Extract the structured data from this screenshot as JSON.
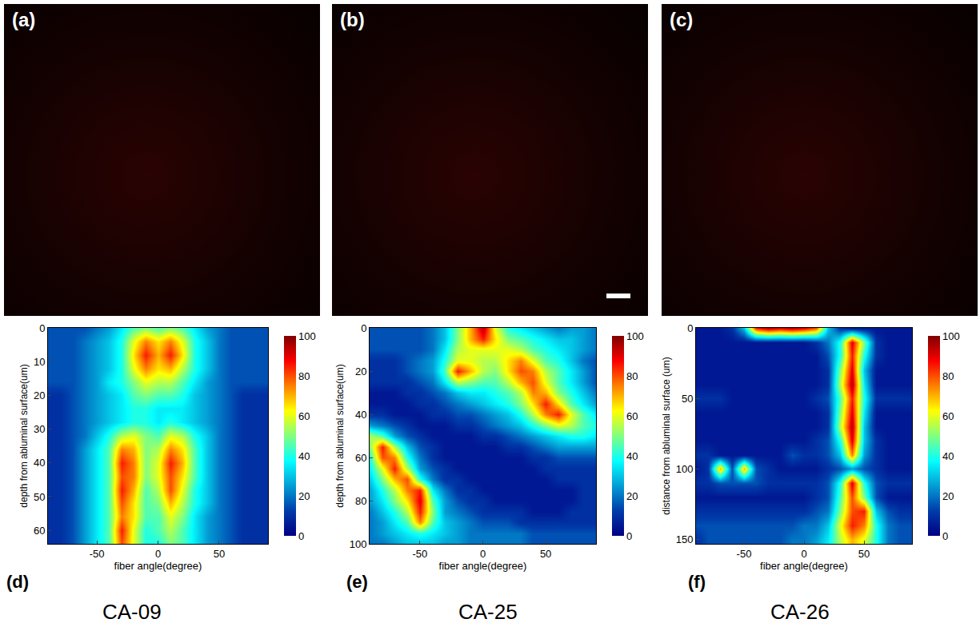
{
  "images": [
    {
      "label": "(a)"
    },
    {
      "label": "(b)"
    },
    {
      "label": "(c)"
    }
  ],
  "chart_data": [
    {
      "type": "heatmap",
      "label": "(d)",
      "caption": "CA-09",
      "x_label": "fiber angle(degree)",
      "y_label": "depth from abluminal surface(um)",
      "x": [
        -90,
        -80,
        -70,
        -60,
        -50,
        -40,
        -30,
        -20,
        -10,
        0,
        10,
        20,
        30,
        40,
        50,
        60,
        70,
        80,
        90
      ],
      "y": [
        0,
        4,
        8,
        12,
        16,
        20,
        24,
        28,
        32,
        36,
        40,
        44,
        48,
        52,
        56,
        60,
        64
      ],
      "z": [
        [
          15,
          15,
          15,
          15,
          20,
          25,
          35,
          45,
          50,
          45,
          50,
          45,
          35,
          25,
          20,
          15,
          15,
          15,
          15
        ],
        [
          15,
          15,
          15,
          20,
          25,
          30,
          40,
          60,
          75,
          65,
          75,
          60,
          40,
          30,
          20,
          15,
          15,
          15,
          15
        ],
        [
          15,
          15,
          15,
          20,
          25,
          30,
          40,
          65,
          85,
          70,
          85,
          65,
          40,
          30,
          20,
          15,
          15,
          15,
          15
        ],
        [
          15,
          15,
          15,
          20,
          25,
          30,
          40,
          60,
          75,
          65,
          70,
          55,
          40,
          30,
          20,
          15,
          15,
          15,
          15
        ],
        [
          15,
          15,
          15,
          20,
          25,
          35,
          40,
          50,
          60,
          55,
          55,
          45,
          35,
          25,
          20,
          15,
          15,
          15,
          15
        ],
        [
          10,
          10,
          15,
          20,
          25,
          30,
          35,
          45,
          50,
          45,
          45,
          40,
          30,
          25,
          20,
          15,
          10,
          10,
          10
        ],
        [
          10,
          10,
          15,
          20,
          25,
          30,
          35,
          40,
          40,
          35,
          35,
          35,
          30,
          25,
          20,
          15,
          10,
          10,
          10
        ],
        [
          10,
          10,
          15,
          20,
          25,
          30,
          35,
          40,
          40,
          35,
          40,
          35,
          30,
          25,
          20,
          15,
          10,
          10,
          10
        ],
        [
          10,
          10,
          15,
          20,
          30,
          40,
          55,
          60,
          50,
          45,
          60,
          55,
          40,
          30,
          20,
          15,
          10,
          10,
          10
        ],
        [
          10,
          10,
          15,
          25,
          35,
          45,
          75,
          70,
          50,
          55,
          75,
          65,
          45,
          30,
          20,
          15,
          10,
          10,
          10
        ],
        [
          10,
          10,
          15,
          25,
          35,
          45,
          85,
          75,
          50,
          60,
          85,
          70,
          45,
          30,
          20,
          15,
          10,
          10,
          10
        ],
        [
          10,
          10,
          15,
          25,
          35,
          45,
          80,
          75,
          50,
          60,
          80,
          65,
          45,
          30,
          20,
          15,
          10,
          10,
          10
        ],
        [
          10,
          10,
          15,
          25,
          35,
          45,
          85,
          70,
          45,
          55,
          80,
          60,
          40,
          30,
          20,
          15,
          10,
          10,
          10
        ],
        [
          10,
          10,
          15,
          25,
          35,
          45,
          80,
          65,
          45,
          50,
          70,
          55,
          40,
          30,
          20,
          15,
          10,
          10,
          10
        ],
        [
          10,
          10,
          15,
          25,
          35,
          45,
          75,
          65,
          45,
          45,
          60,
          50,
          35,
          25,
          20,
          15,
          10,
          10,
          10
        ],
        [
          10,
          10,
          15,
          25,
          35,
          45,
          85,
          60,
          40,
          45,
          55,
          45,
          35,
          25,
          20,
          15,
          10,
          10,
          10
        ],
        [
          10,
          10,
          15,
          25,
          35,
          45,
          80,
          60,
          40,
          40,
          50,
          45,
          35,
          25,
          20,
          15,
          10,
          10,
          10
        ]
      ],
      "xlim": [
        -90,
        90
      ],
      "xticks": [
        -50,
        0,
        50
      ],
      "ylim": [
        64,
        0
      ],
      "yticks": [
        0,
        10,
        20,
        30,
        40,
        50,
        60
      ],
      "zlim": [
        0,
        100
      ],
      "zticks": [
        0,
        20,
        40,
        60,
        80,
        100
      ]
    },
    {
      "type": "heatmap",
      "label": "(e)",
      "caption": "CA-25",
      "x_label": "fiber angle(degree)",
      "y_label": "depth from abluminal surface(um)",
      "x": [
        -90,
        -80,
        -70,
        -60,
        -50,
        -40,
        -30,
        -20,
        -10,
        0,
        10,
        20,
        30,
        40,
        50,
        60,
        70,
        80,
        90
      ],
      "y": [
        0,
        5,
        10,
        15,
        20,
        25,
        30,
        35,
        40,
        45,
        50,
        55,
        60,
        65,
        70,
        75,
        80,
        85,
        90,
        95,
        100
      ],
      "z": [
        [
          15,
          15,
          15,
          15,
          15,
          20,
          30,
          50,
          70,
          95,
          60,
          40,
          35,
          30,
          25,
          20,
          25,
          25,
          20
        ],
        [
          15,
          15,
          15,
          15,
          15,
          20,
          30,
          50,
          70,
          85,
          65,
          50,
          45,
          40,
          35,
          30,
          30,
          25,
          20
        ],
        [
          15,
          15,
          15,
          15,
          15,
          20,
          35,
          55,
          60,
          60,
          60,
          60,
          55,
          45,
          40,
          35,
          30,
          25,
          20
        ],
        [
          10,
          10,
          10,
          15,
          20,
          25,
          40,
          60,
          60,
          55,
          55,
          65,
          75,
          60,
          45,
          40,
          30,
          20,
          15
        ],
        [
          10,
          10,
          10,
          15,
          20,
          25,
          45,
          85,
          70,
          55,
          50,
          65,
          80,
          75,
          55,
          45,
          35,
          25,
          15
        ],
        [
          10,
          10,
          10,
          10,
          15,
          20,
          35,
          55,
          50,
          45,
          45,
          55,
          70,
          80,
          60,
          45,
          35,
          25,
          15
        ],
        [
          5,
          5,
          5,
          10,
          10,
          15,
          20,
          30,
          35,
          35,
          40,
          45,
          55,
          75,
          70,
          50,
          40,
          30,
          20
        ],
        [
          5,
          5,
          5,
          5,
          10,
          10,
          15,
          20,
          25,
          30,
          35,
          40,
          50,
          65,
          85,
          65,
          45,
          35,
          25
        ],
        [
          10,
          10,
          5,
          5,
          5,
          10,
          10,
          15,
          15,
          20,
          25,
          30,
          40,
          55,
          75,
          85,
          60,
          45,
          35
        ],
        [
          25,
          20,
          15,
          10,
          5,
          5,
          5,
          10,
          10,
          15,
          20,
          25,
          30,
          40,
          50,
          60,
          55,
          45,
          40
        ],
        [
          55,
          45,
          25,
          15,
          10,
          5,
          5,
          5,
          5,
          10,
          10,
          15,
          20,
          25,
          30,
          35,
          40,
          40,
          35
        ],
        [
          50,
          85,
          55,
          30,
          15,
          10,
          5,
          5,
          5,
          5,
          5,
          10,
          10,
          15,
          20,
          25,
          25,
          25,
          25
        ],
        [
          40,
          80,
          75,
          40,
          20,
          10,
          5,
          5,
          5,
          5,
          5,
          5,
          5,
          10,
          10,
          15,
          15,
          15,
          15
        ],
        [
          35,
          60,
          85,
          55,
          25,
          15,
          10,
          5,
          5,
          5,
          5,
          5,
          5,
          5,
          10,
          10,
          10,
          10,
          10
        ],
        [
          30,
          50,
          70,
          80,
          40,
          20,
          10,
          10,
          5,
          5,
          5,
          5,
          5,
          5,
          5,
          10,
          10,
          10,
          10
        ],
        [
          25,
          40,
          55,
          75,
          85,
          35,
          20,
          10,
          10,
          5,
          5,
          5,
          5,
          5,
          5,
          5,
          5,
          10,
          10
        ],
        [
          25,
          35,
          50,
          65,
          90,
          45,
          25,
          15,
          10,
          10,
          5,
          5,
          5,
          5,
          5,
          5,
          5,
          10,
          10
        ],
        [
          20,
          30,
          40,
          55,
          85,
          50,
          25,
          20,
          15,
          10,
          10,
          10,
          10,
          5,
          5,
          5,
          10,
          10,
          10
        ],
        [
          20,
          25,
          35,
          45,
          75,
          45,
          30,
          25,
          20,
          15,
          15,
          15,
          10,
          10,
          10,
          10,
          10,
          10,
          10
        ],
        [
          20,
          25,
          30,
          35,
          40,
          35,
          30,
          25,
          20,
          20,
          20,
          20,
          20,
          15,
          15,
          15,
          15,
          15,
          15
        ],
        [
          20,
          20,
          25,
          30,
          30,
          30,
          25,
          25,
          20,
          20,
          20,
          20,
          20,
          15,
          15,
          15,
          15,
          15,
          15
        ]
      ],
      "xlim": [
        -90,
        90
      ],
      "xticks": [
        -50,
        0,
        50
      ],
      "ylim": [
        100,
        0
      ],
      "yticks": [
        0,
        20,
        40,
        60,
        80,
        100
      ],
      "zlim": [
        0,
        100
      ],
      "zticks": [
        0,
        20,
        40,
        60,
        80,
        100
      ]
    },
    {
      "type": "heatmap",
      "label": "(f)",
      "caption": "CA-26",
      "x_label": "fiber angle(degree)",
      "y_label": "distance from abluminal surface (um)",
      "x": [
        -90,
        -80,
        -70,
        -60,
        -50,
        -40,
        -30,
        -20,
        -10,
        0,
        10,
        20,
        30,
        40,
        50,
        60,
        70,
        80,
        90
      ],
      "y": [
        0,
        10,
        20,
        30,
        40,
        50,
        60,
        70,
        80,
        90,
        100,
        110,
        120,
        130,
        140,
        150
      ],
      "z": [
        [
          5,
          5,
          5,
          10,
          30,
          85,
          95,
          90,
          95,
          90,
          80,
          30,
          10,
          5,
          5,
          5,
          5,
          5,
          5
        ],
        [
          5,
          5,
          5,
          5,
          5,
          5,
          5,
          5,
          5,
          5,
          10,
          20,
          40,
          90,
          50,
          10,
          5,
          5,
          5
        ],
        [
          5,
          5,
          5,
          5,
          5,
          5,
          5,
          5,
          5,
          5,
          5,
          15,
          40,
          85,
          40,
          10,
          5,
          5,
          5
        ],
        [
          5,
          5,
          5,
          5,
          5,
          5,
          5,
          5,
          5,
          5,
          5,
          10,
          50,
          90,
          30,
          5,
          5,
          5,
          5
        ],
        [
          5,
          5,
          5,
          5,
          5,
          5,
          5,
          5,
          5,
          5,
          5,
          10,
          55,
          95,
          35,
          5,
          5,
          5,
          5
        ],
        [
          10,
          10,
          10,
          5,
          5,
          5,
          5,
          5,
          5,
          5,
          10,
          15,
          45,
          85,
          40,
          10,
          10,
          10,
          10
        ],
        [
          5,
          5,
          5,
          5,
          5,
          5,
          5,
          5,
          5,
          5,
          5,
          10,
          50,
          90,
          35,
          5,
          5,
          5,
          5
        ],
        [
          5,
          5,
          5,
          5,
          5,
          5,
          5,
          5,
          5,
          5,
          5,
          10,
          55,
          95,
          30,
          5,
          5,
          5,
          5
        ],
        [
          5,
          5,
          5,
          5,
          5,
          5,
          5,
          5,
          5,
          5,
          10,
          15,
          40,
          90,
          30,
          10,
          5,
          5,
          5
        ],
        [
          10,
          10,
          5,
          5,
          5,
          5,
          5,
          5,
          15,
          10,
          10,
          15,
          30,
          75,
          25,
          10,
          5,
          5,
          5
        ],
        [
          5,
          10,
          70,
          15,
          70,
          15,
          10,
          5,
          5,
          5,
          5,
          10,
          15,
          25,
          15,
          10,
          5,
          5,
          5
        ],
        [
          10,
          10,
          15,
          15,
          15,
          15,
          10,
          10,
          10,
          10,
          10,
          15,
          40,
          90,
          40,
          15,
          10,
          10,
          10
        ],
        [
          5,
          5,
          5,
          5,
          5,
          5,
          5,
          5,
          5,
          5,
          10,
          15,
          45,
          80,
          50,
          15,
          5,
          5,
          5
        ],
        [
          10,
          10,
          10,
          10,
          10,
          10,
          10,
          10,
          10,
          10,
          15,
          20,
          50,
          80,
          85,
          30,
          15,
          10,
          10
        ],
        [
          15,
          15,
          15,
          15,
          15,
          15,
          15,
          15,
          15,
          20,
          20,
          30,
          60,
          85,
          75,
          40,
          20,
          15,
          15
        ],
        [
          10,
          15,
          15,
          15,
          15,
          15,
          15,
          15,
          20,
          20,
          25,
          35,
          55,
          70,
          60,
          40,
          20,
          15,
          15
        ]
      ],
      "xlim": [
        -90,
        90
      ],
      "xticks": [
        -50,
        0,
        50
      ],
      "ylim": [
        153,
        0
      ],
      "yticks": [
        0,
        50,
        100,
        150
      ],
      "zlim": [
        0,
        100
      ],
      "zticks": [
        0,
        20,
        40,
        60,
        80,
        100
      ]
    }
  ]
}
